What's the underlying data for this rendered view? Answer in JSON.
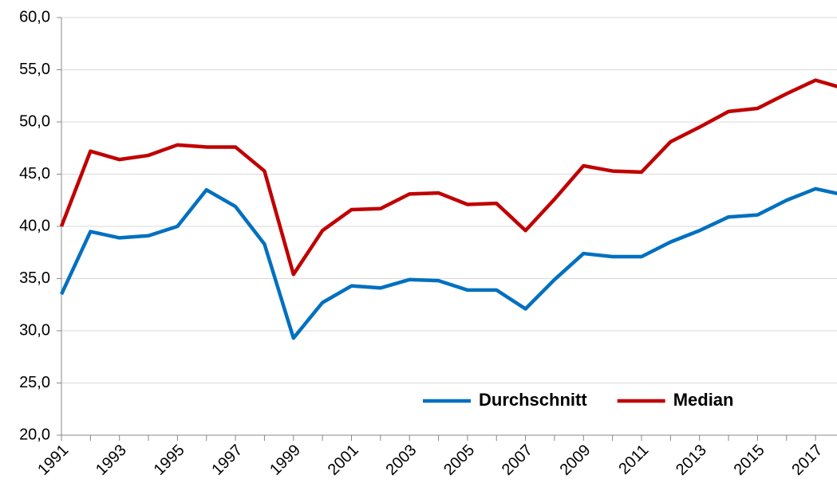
{
  "chart_data": {
    "type": "line",
    "categories": [
      "1991",
      null,
      "1993",
      null,
      "1995",
      null,
      "1997",
      null,
      "1999",
      null,
      "2001",
      null,
      "2003",
      null,
      "2005",
      null,
      "2007",
      null,
      "2009",
      null,
      "2011",
      null,
      "2013",
      null,
      "2015",
      null,
      "2017",
      null
    ],
    "series": [
      {
        "name": "Durchschnitt",
        "color": "#0070c0",
        "values": [
          33.5,
          39.5,
          38.9,
          39.1,
          40.0,
          43.5,
          41.9,
          38.3,
          29.3,
          32.7,
          34.3,
          34.1,
          34.9,
          34.8,
          33.9,
          33.9,
          32.1,
          34.9,
          37.4,
          37.1,
          37.1,
          38.5,
          39.6,
          40.9,
          41.1,
          42.5,
          43.6,
          43.0
        ]
      },
      {
        "name": "Median",
        "color": "#c00000",
        "values": [
          40.0,
          47.2,
          46.4,
          46.8,
          47.8,
          47.6,
          47.6,
          45.3,
          35.4,
          39.6,
          41.6,
          41.7,
          43.1,
          43.2,
          42.1,
          42.2,
          39.6,
          42.6,
          45.8,
          45.3,
          45.2,
          48.1,
          49.5,
          51.0,
          51.3,
          52.7,
          54.0,
          53.2
        ]
      }
    ],
    "ylim": [
      20,
      60
    ],
    "yticks": [
      {
        "value": 20,
        "label": "20,0"
      },
      {
        "value": 25,
        "label": "25,0"
      },
      {
        "value": 30,
        "label": "30,0"
      },
      {
        "value": 35,
        "label": "35,0"
      },
      {
        "value": 40,
        "label": "40,0"
      },
      {
        "value": 45,
        "label": "45,0"
      },
      {
        "value": 50,
        "label": "50,0"
      },
      {
        "value": 55,
        "label": "55,0"
      },
      {
        "value": 60,
        "label": "60,0"
      }
    ],
    "grid": true,
    "legend": "bottom-right"
  }
}
